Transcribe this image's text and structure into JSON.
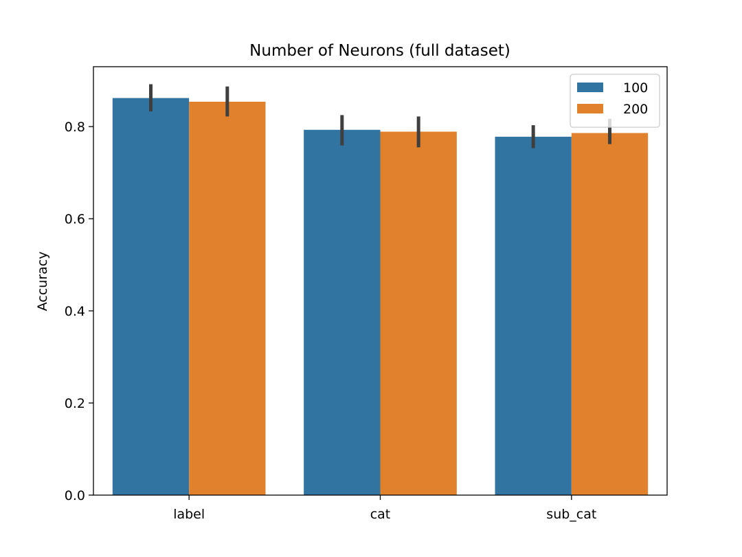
{
  "chart_data": {
    "type": "bar",
    "title": "Number of Neurons (full dataset)",
    "xlabel": "",
    "ylabel": "Accuracy",
    "ylim": [
      0,
      0.93
    ],
    "yticks": [
      0.0,
      0.2,
      0.4,
      0.6,
      0.8
    ],
    "ytick_labels": [
      "0.0",
      "0.2",
      "0.4",
      "0.6",
      "0.8"
    ],
    "categories": [
      "label",
      "cat",
      "sub_cat"
    ],
    "series": [
      {
        "name": "100",
        "color": "#3274a1",
        "values": [
          0.862,
          0.793,
          0.778
        ],
        "error_low": [
          0.833,
          0.759,
          0.753
        ],
        "error_high": [
          0.892,
          0.825,
          0.803
        ]
      },
      {
        "name": "200",
        "color": "#e1812c",
        "values": [
          0.854,
          0.789,
          0.786
        ],
        "error_low": [
          0.822,
          0.755,
          0.762
        ],
        "error_high": [
          0.887,
          0.822,
          0.817
        ]
      }
    ],
    "error_bar_color": "#3f3f3f",
    "grid": false,
    "legend_position": "top-right"
  }
}
